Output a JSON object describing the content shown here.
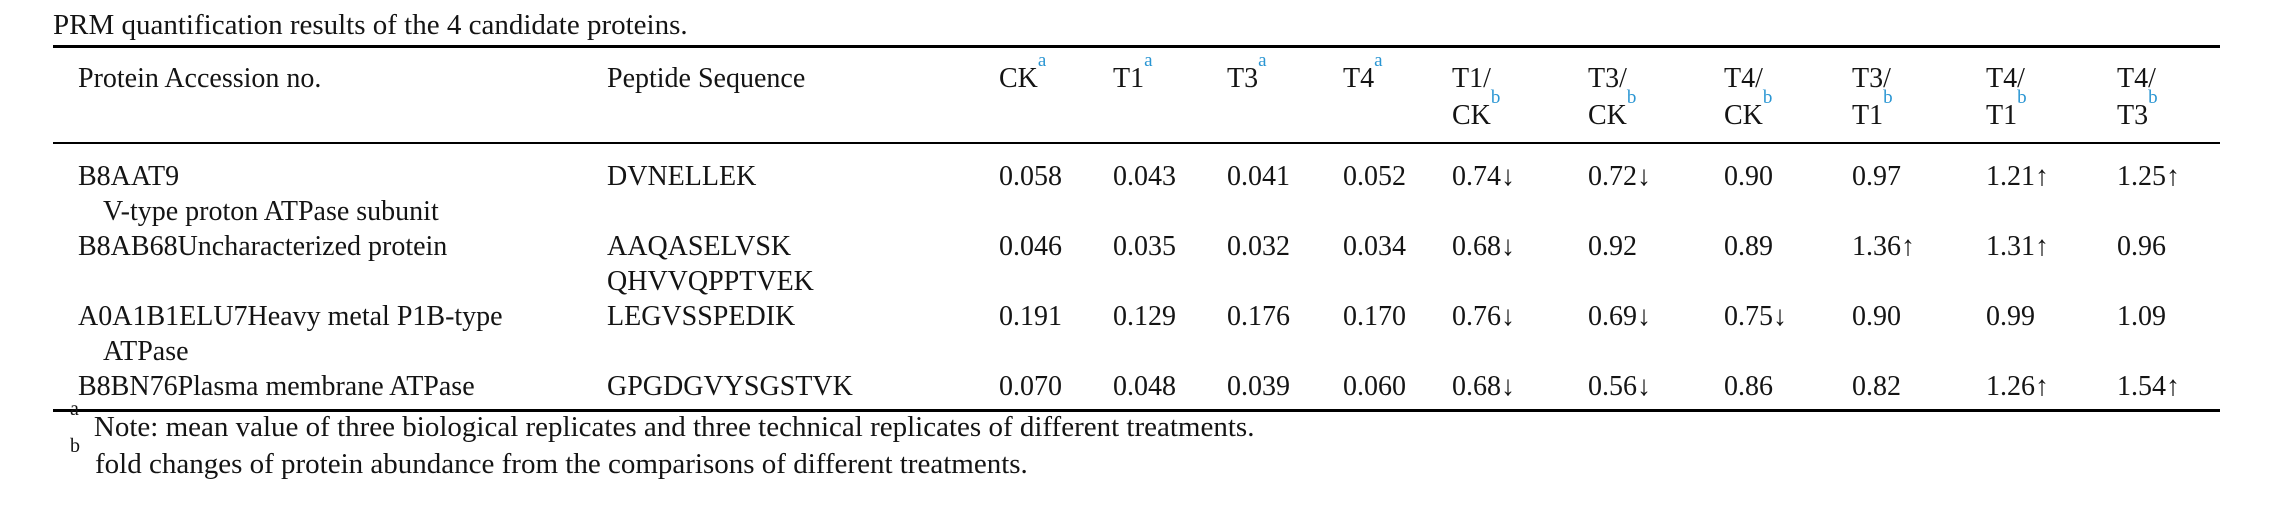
{
  "title": "PRM quantification results of the 4 candidate proteins.",
  "colors": {
    "accent_blue": "#2B96D3",
    "text": "#141414",
    "rule": "#000000",
    "background": "#ffffff"
  },
  "table": {
    "columns": [
      {
        "id": "protein-accession",
        "label": "Protein Accession no."
      },
      {
        "id": "peptide-sequence",
        "label": "Peptide Sequence"
      },
      {
        "id": "ck",
        "label": "CK",
        "sup": "a"
      },
      {
        "id": "t1",
        "label": "T1",
        "sup": "a"
      },
      {
        "id": "t3",
        "label": "T3",
        "sup": "a"
      },
      {
        "id": "t4",
        "label": "T4",
        "sup": "a"
      },
      {
        "id": "t1-ck",
        "label": "T1/",
        "label2": "CK",
        "sup": "b"
      },
      {
        "id": "t3-ck",
        "label": "T3/",
        "label2": "CK",
        "sup": "b"
      },
      {
        "id": "t4-ck",
        "label": "T4/",
        "label2": "CK",
        "sup": "b"
      },
      {
        "id": "t3-t1",
        "label": "T3/",
        "label2": "T1",
        "sup": "b"
      },
      {
        "id": "t4-t1",
        "label": "T4/",
        "label2": "T1",
        "sup": "b"
      },
      {
        "id": "t4-t3",
        "label": "T4/",
        "label2": "T3",
        "sup": "b"
      }
    ],
    "rows": [
      {
        "accession_lines": [
          "B8AAT9",
          "V-type proton ATPase subunit"
        ],
        "peptide_lines": [
          "DVNELLEK"
        ],
        "values": [
          "0.058",
          "0.043",
          "0.041",
          "0.052",
          "0.74↓",
          "0.72↓",
          "0.90",
          "0.97",
          "1.21↑",
          "1.25↑"
        ]
      },
      {
        "accession_lines": [
          "B8AB68Uncharacterized protein"
        ],
        "peptide_lines": [
          "AAQASELVSK",
          "QHVVQPPTVEK"
        ],
        "values": [
          "0.046",
          "0.035",
          "0.032",
          "0.034",
          "0.68↓",
          "0.92",
          "0.89",
          "1.36↑",
          "1.31↑",
          "0.96"
        ]
      },
      {
        "accession_lines": [
          "A0A1B1ELU7Heavy metal P1B-type",
          "ATPase"
        ],
        "peptide_lines": [
          "LEGVSSPEDIK"
        ],
        "values": [
          "0.191",
          "0.129",
          "0.176",
          "0.170",
          "0.76↓",
          "0.69↓",
          "0.75↓",
          "0.90",
          "0.99",
          "1.09"
        ]
      },
      {
        "accession_lines": [
          "B8BN76Plasma membrane ATPase"
        ],
        "peptide_lines": [
          "GPGDGVYSGSTVK"
        ],
        "values": [
          "0.070",
          "0.048",
          "0.039",
          "0.060",
          "0.68↓",
          "0.56↓",
          "0.86",
          "0.82",
          "1.26↑",
          "1.54↑"
        ]
      }
    ]
  },
  "footnotes": [
    {
      "marker": "a",
      "text": "Note: mean value of three biological replicates and three technical replicates of different treatments."
    },
    {
      "marker": "b",
      "text": "fold changes of protein abundance from the comparisons of different treatments."
    }
  ]
}
